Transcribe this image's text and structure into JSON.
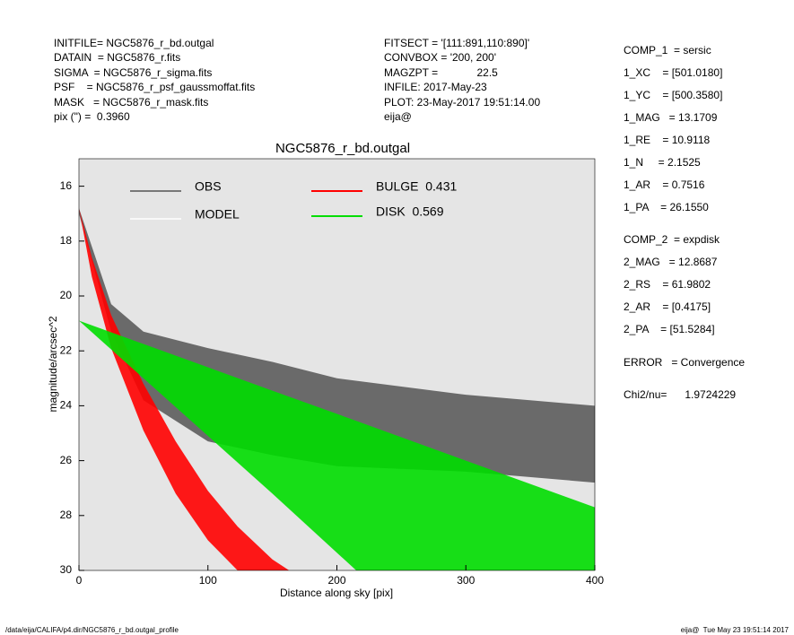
{
  "header": {
    "left": [
      "INITFILE= NGC5876_r_bd.outgal",
      "DATAIN  = NGC5876_r.fits",
      "SIGMA  = NGC5876_r_sigma.fits",
      "PSF    = NGC5876_r_psf_gaussmoffat.fits",
      "MASK   = NGC5876_r_mask.fits",
      "pix (\") =  0.3960"
    ],
    "middle": [
      "FITSECT = '[111:891,110:890]'",
      "CONVBOX = '200, 200'",
      "MAGZPT =             22.5",
      "INFILE: 2017-May-23",
      "PLOT: 23-May-2017 19:51:14.00",
      "eija@"
    ],
    "comp1": [
      "COMP_1  = sersic",
      "1_XC    = [501.0180]",
      "1_YC    = [500.3580]",
      "1_MAG   = 13.1709",
      "1_RE    = 10.9118",
      "1_N     = 2.1525",
      "1_AR    = 0.7516",
      "1_PA    = 26.1550"
    ],
    "comp2": [
      "COMP_2  = expdisk",
      "2_MAG   = 12.8687",
      "2_RS    = 61.9802",
      "2_AR    = [0.4175]",
      "2_PA    = [51.5284]"
    ],
    "error": "ERROR   = Convergence",
    "chi2": "Chi2/nu=      1.9724229"
  },
  "footer": {
    "left": "/data/eija/CALIFA/p4.dir/NGC5876_r_bd.outgal_profile",
    "right": "eija@  Tue May 23 19:51:14 2017"
  },
  "chart_data": {
    "type": "band",
    "title": "NGC5876_r_bd.outgal",
    "x_label": "Distance along sky [pix]",
    "y_label": "magnitude/arcsec^2",
    "xlim": [
      0,
      400
    ],
    "xticks": [
      0,
      100,
      200,
      300,
      400
    ],
    "ylim": [
      15,
      30
    ],
    "yticks": [
      16,
      18,
      20,
      22,
      24,
      26,
      28,
      30
    ],
    "y_reversed": true,
    "series": [
      {
        "name": "OBS",
        "color": "#555555",
        "x": [
          0,
          25,
          50,
          100,
          150,
          200,
          300,
          400
        ],
        "values": [
          16.8,
          20.3,
          21.3,
          21.9,
          22.4,
          23.0,
          23.6,
          24.0
        ],
        "lower": [
          17.0,
          21.3,
          23.8,
          25.3,
          25.8,
          26.2,
          26.4,
          26.8
        ]
      },
      {
        "name": "MODEL",
        "color": "#ffffff"
      },
      {
        "name": "BULGE  0.431",
        "color": "#ff0000",
        "x": [
          0,
          10,
          25,
          50,
          75,
          100,
          123,
          150,
          163
        ],
        "values": [
          16.8,
          18.6,
          20.7,
          23.2,
          25.3,
          27.1,
          28.4,
          29.6,
          30
        ],
        "lower": [
          16.8,
          19.3,
          21.9,
          24.9,
          27.2,
          28.9,
          30,
          30,
          30
        ]
      },
      {
        "name": "DISK  0.569",
        "color": "#00dd00",
        "x": [
          0,
          50,
          100,
          150,
          215,
          300,
          400
        ],
        "values": [
          20.9,
          21.75,
          22.6,
          23.45,
          24.55,
          26.0,
          27.7
        ],
        "lower": [
          20.9,
          23.0,
          25.1,
          27.2,
          30,
          30,
          30
        ]
      }
    ]
  }
}
